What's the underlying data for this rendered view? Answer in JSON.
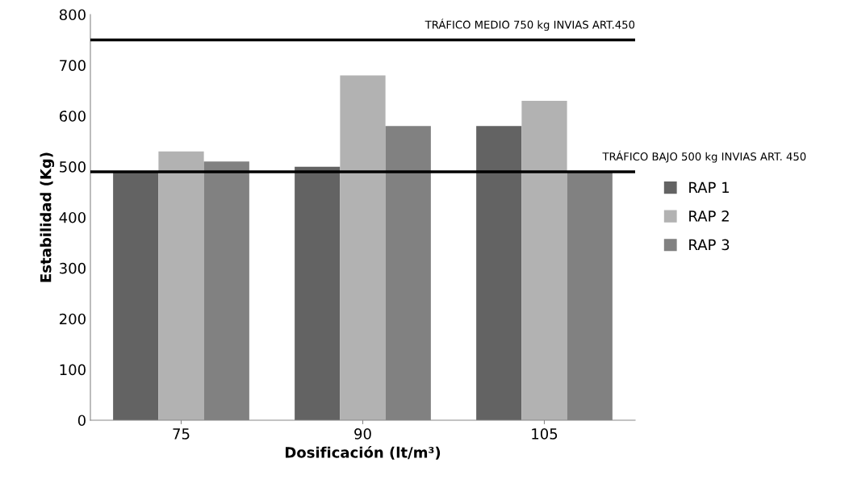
{
  "chart_data": {
    "type": "bar",
    "xlabel": "Dosificación (lt/m³)",
    "ylabel": "Estabilidad (Kg)",
    "categories": [
      "75",
      "90",
      "105"
    ],
    "series": [
      {
        "name": "RAP 1",
        "color": "#636363",
        "values": [
          490,
          500,
          580
        ]
      },
      {
        "name": "RAP 2",
        "color": "#b2b2b2",
        "values": [
          530,
          680,
          630
        ]
      },
      {
        "name": "RAP 3",
        "color": "#818181",
        "values": [
          510,
          580,
          490
        ]
      }
    ],
    "ylim": [
      0,
      800
    ],
    "yticks": [
      0,
      100,
      200,
      300,
      400,
      500,
      600,
      700,
      800
    ],
    "ref_lines": [
      {
        "axis": "y",
        "value": 750,
        "label": "TRÁFICO MEDIO 750 kg INVIAS ART.450",
        "color": "#000000"
      },
      {
        "axis": "y",
        "value": 490,
        "label": "TRÁFICO BAJO 500 kg INVIAS ART. 450",
        "color": "#000000"
      }
    ],
    "grid": false,
    "legend": "right"
  }
}
